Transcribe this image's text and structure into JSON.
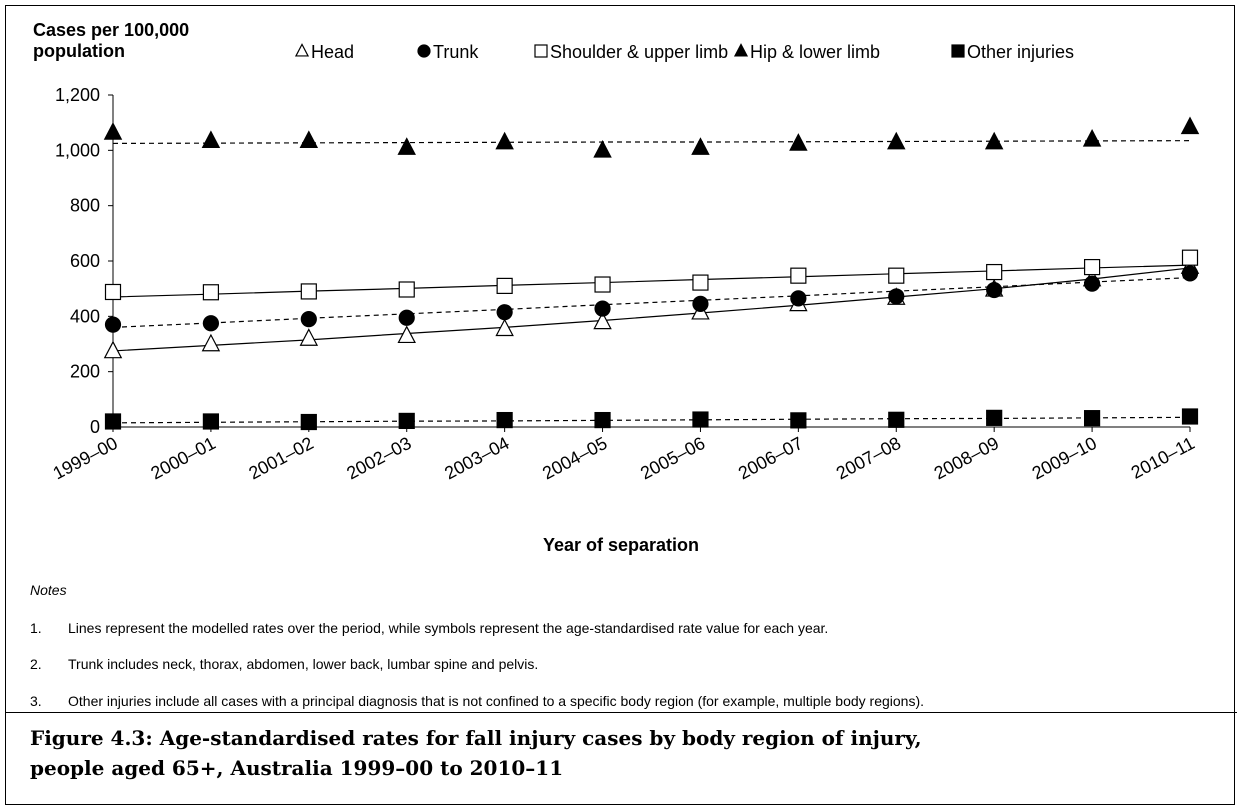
{
  "chart_data": {
    "type": "line",
    "y_axis_label": "Cases per 100,000 population",
    "x_axis_label": "Year of separation",
    "categories": [
      "1999–00",
      "2000–01",
      "2001–02",
      "2002–03",
      "2003–04",
      "2004–05",
      "2005–06",
      "2006–07",
      "2007–08",
      "2008–09",
      "2009–10",
      "2010–11"
    ],
    "ylim": [
      0,
      1200
    ],
    "yticks": [
      0,
      200,
      400,
      600,
      800,
      {
        "value": 1000,
        "label": "1,000"
      },
      {
        "value": 1200,
        "label": "1,200"
      }
    ],
    "grid": false,
    "legend": "top",
    "series": [
      {
        "name": "Head",
        "marker": "triangle-open",
        "color": "#000000",
        "line": "solid",
        "values": [
          275,
          300,
          320,
          330,
          355,
          380,
          415,
          445,
          468,
          498,
          535,
          580
        ],
        "model_values": [
          275,
          295,
          315,
          338,
          360,
          385,
          412,
          440,
          470,
          500,
          535,
          575
        ]
      },
      {
        "name": "Trunk",
        "marker": "circle",
        "color": "#000000",
        "line": "dashed",
        "values": [
          370,
          375,
          390,
          395,
          415,
          428,
          445,
          465,
          472,
          495,
          518,
          555
        ],
        "model_values": [
          360,
          376,
          393,
          409,
          425,
          442,
          458,
          474,
          491,
          507,
          524,
          540
        ]
      },
      {
        "name": "Shoulder & upper limb",
        "marker": "square-open",
        "color": "#000000",
        "line": "solid",
        "values": [
          488,
          487,
          490,
          497,
          510,
          515,
          522,
          547,
          547,
          560,
          578,
          612
        ],
        "model_values": [
          470,
          480,
          491,
          501,
          512,
          522,
          533,
          543,
          554,
          564,
          575,
          585
        ]
      },
      {
        "name": "Hip & lower limb",
        "marker": "triangle",
        "color": "#000000",
        "line": "dashed",
        "values": [
          1065,
          1035,
          1035,
          1010,
          1030,
          1000,
          1010,
          1025,
          1030,
          1030,
          1040,
          1085
        ],
        "model_values": [
          1025,
          1026,
          1027,
          1028,
          1029,
          1030,
          1030,
          1031,
          1032,
          1033,
          1034,
          1035
        ]
      },
      {
        "name": "Other injuries",
        "marker": "square",
        "color": "#000000",
        "line": "dashed",
        "values": [
          20,
          20,
          18,
          22,
          25,
          25,
          27,
          24,
          26,
          33,
          32,
          38
        ],
        "model_values": [
          15,
          17,
          19,
          21,
          22,
          24,
          26,
          28,
          30,
          31,
          33,
          35
        ]
      }
    ]
  },
  "notes": {
    "heading": "Notes",
    "items": [
      {
        "number": "1.",
        "text": "Lines represent the modelled rates over the period, while symbols represent the age-standardised rate value for each year."
      },
      {
        "number": "2.",
        "text": "Trunk includes neck, thorax, abdomen, lower back, lumbar spine and pelvis."
      },
      {
        "number": "3.",
        "text": "Other injuries include all cases with a principal diagnosis that is not confined to a specific body region (for example, multiple body regions)."
      }
    ]
  },
  "caption": "Figure 4.3: Age-standardised rates for fall injury cases by body region of injury, people aged 65+, Australia 1999–00 to 2010–11"
}
